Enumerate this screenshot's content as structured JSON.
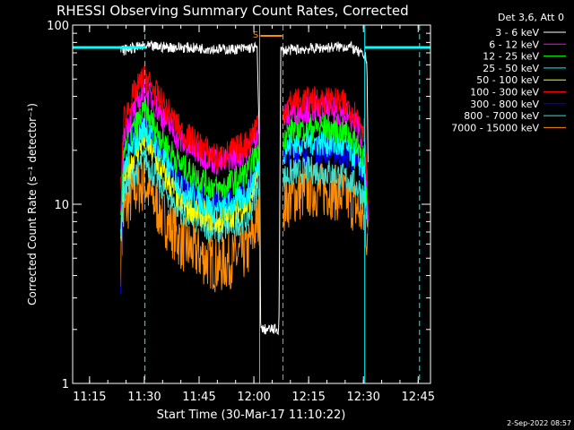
{
  "chart_data": {
    "type": "line",
    "title": "RHESSI Observing Summary Count Rates, Corrected",
    "xlabel": "Start Time (30-Mar-17 11:10:22)",
    "ylabel": "Corrected Count Rate (s⁻¹ detector⁻¹)",
    "yscale": "log",
    "ylim": [
      1,
      100
    ],
    "xlim_minutes": [
      0,
      98
    ],
    "x_ticks": [
      {
        "m": 4.63,
        "label": "11:15"
      },
      {
        "m": 19.63,
        "label": "11:30"
      },
      {
        "m": 34.63,
        "label": "11:45"
      },
      {
        "m": 49.63,
        "label": "12:00"
      },
      {
        "m": 64.63,
        "label": "12:15"
      },
      {
        "m": 79.63,
        "label": "12:30"
      },
      {
        "m": 94.63,
        "label": "12:45"
      }
    ],
    "y_ticks": [
      {
        "v": 1,
        "label": "1"
      },
      {
        "v": 10,
        "label": "10"
      },
      {
        "v": 100,
        "label": "100"
      }
    ],
    "legend_title": "Det 3,6, Att 0",
    "series": [
      {
        "name": "3 - 6 keV",
        "color": "#ffffff",
        "knots": [
          [
            13.2,
            72
          ],
          [
            16,
            74
          ],
          [
            19,
            76
          ],
          [
            30,
            75
          ],
          [
            43,
            73
          ],
          [
            50.5,
            75
          ],
          [
            51.2,
            20
          ],
          [
            51.5,
            2
          ],
          [
            56.5,
            2
          ],
          [
            57,
            72
          ],
          [
            70,
            75
          ],
          [
            76,
            76
          ],
          [
            80.6,
            65
          ],
          [
            81,
            10
          ]
        ]
      },
      {
        "name": "6 - 12 keV",
        "color": "#ff00ff",
        "knots": [
          [
            13.2,
            10
          ],
          [
            14,
            26
          ],
          [
            17,
            34
          ],
          [
            19.8,
            44
          ],
          [
            24,
            32
          ],
          [
            30,
            22
          ],
          [
            40,
            17
          ],
          [
            48,
            20
          ],
          [
            51,
            27
          ],
          [
            56.5,
            27
          ],
          [
            57.8,
            30
          ],
          [
            60,
            33
          ],
          [
            65,
            34
          ],
          [
            70,
            34
          ],
          [
            75,
            32
          ],
          [
            78,
            27
          ],
          [
            80,
            22
          ],
          [
            81,
            8
          ]
        ]
      },
      {
        "name": "12 - 25 keV",
        "color": "#00ff00",
        "knots": [
          [
            13.2,
            8
          ],
          [
            14,
            21
          ],
          [
            17,
            27
          ],
          [
            19.8,
            33
          ],
          [
            24,
            24
          ],
          [
            30,
            16
          ],
          [
            40,
            12
          ],
          [
            48,
            15
          ],
          [
            51,
            21
          ],
          [
            56.5,
            21
          ],
          [
            57.8,
            24
          ],
          [
            60,
            26
          ],
          [
            65,
            27
          ],
          [
            70,
            27
          ],
          [
            75,
            25
          ],
          [
            78,
            22
          ],
          [
            80,
            18
          ],
          [
            81,
            6.5
          ]
        ]
      },
      {
        "name": "25 - 50 keV",
        "color": "#00ffff",
        "knots": [
          [
            13.2,
            7
          ],
          [
            14,
            16
          ],
          [
            17,
            22
          ],
          [
            19.8,
            27
          ],
          [
            24,
            19
          ],
          [
            30,
            12
          ],
          [
            40,
            9
          ],
          [
            48,
            11.5
          ],
          [
            51,
            17
          ],
          [
            56.5,
            18
          ],
          [
            57.8,
            20
          ],
          [
            60,
            21.5
          ],
          [
            65,
            22.5
          ],
          [
            70,
            22
          ],
          [
            75,
            20.5
          ],
          [
            78,
            18
          ],
          [
            80,
            15
          ],
          [
            81,
            6
          ]
        ]
      },
      {
        "name": "50 - 100 keV",
        "color": "#ffff00",
        "knots": [
          [
            13.2,
            6.5
          ],
          [
            14,
            14
          ],
          [
            17,
            19
          ],
          [
            19.8,
            23
          ],
          [
            24,
            16
          ],
          [
            30,
            10
          ],
          [
            40,
            8
          ],
          [
            48,
            10
          ],
          [
            51,
            15
          ]
        ]
      },
      {
        "name": "100 - 300 keV",
        "color": "#ff0000",
        "knots": [
          [
            13.2,
            12
          ],
          [
            14,
            30
          ],
          [
            17,
            42
          ],
          [
            19.8,
            52
          ],
          [
            24,
            38
          ],
          [
            30,
            25
          ],
          [
            40,
            18
          ],
          [
            48,
            22
          ],
          [
            51,
            30
          ],
          [
            56.5,
            30
          ],
          [
            57.8,
            34
          ],
          [
            60,
            37
          ],
          [
            65,
            38
          ],
          [
            70,
            38
          ],
          [
            75,
            36
          ],
          [
            78,
            31
          ],
          [
            80,
            26
          ],
          [
            81,
            9
          ]
        ]
      },
      {
        "name": "300 - 800 keV",
        "color": "#0000ff",
        "knots": [
          [
            13.2,
            3
          ],
          [
            14,
            22
          ],
          [
            17,
            26
          ],
          [
            19.8,
            28
          ],
          [
            24,
            20
          ],
          [
            30,
            13
          ],
          [
            40,
            10
          ],
          [
            48,
            12.5
          ],
          [
            51,
            18
          ],
          [
            56.5,
            18
          ],
          [
            57.8,
            19
          ],
          [
            60,
            20
          ],
          [
            65,
            20
          ],
          [
            70,
            20
          ],
          [
            75,
            19
          ],
          [
            78,
            17
          ],
          [
            80,
            14
          ],
          [
            81,
            7
          ]
        ]
      },
      {
        "name": "800 - 7000 keV",
        "color": "#40e0d0",
        "knots": [
          [
            13.2,
            6.5
          ],
          [
            14,
            12
          ],
          [
            17,
            15
          ],
          [
            19.8,
            18
          ],
          [
            24,
            13
          ],
          [
            30,
            9
          ],
          [
            40,
            7
          ],
          [
            48,
            8.5
          ],
          [
            51,
            13
          ],
          [
            56.5,
            13
          ],
          [
            57.8,
            14
          ],
          [
            60,
            15
          ],
          [
            65,
            15.5
          ],
          [
            70,
            15
          ],
          [
            75,
            14
          ],
          [
            78,
            12.5
          ],
          [
            80,
            11
          ],
          [
            81,
            6.5
          ]
        ]
      },
      {
        "name": "7000 - 15000 keV",
        "color": "#ff8c00",
        "knots": [
          [
            13.2,
            5
          ],
          [
            14,
            9
          ],
          [
            17,
            12
          ],
          [
            19.8,
            13
          ],
          [
            24,
            9
          ],
          [
            30,
            6
          ],
          [
            40,
            4.5
          ],
          [
            48,
            5.5
          ],
          [
            51,
            8.5
          ],
          [
            56.5,
            9
          ],
          [
            57.8,
            10
          ],
          [
            60,
            11
          ],
          [
            65,
            12
          ],
          [
            70,
            12
          ],
          [
            75,
            11
          ],
          [
            78,
            9.5
          ],
          [
            80,
            8
          ],
          [
            81,
            6
          ]
        ]
      }
    ],
    "reference_lines": [
      {
        "kind": "hline",
        "value": 75,
        "x_from_m": 0,
        "x_to_m": 20,
        "color": "#00ffff"
      },
      {
        "kind": "hline",
        "value": 75,
        "x_from_m": 80,
        "x_to_m": 98,
        "color": "#00ffff"
      },
      {
        "kind": "vline",
        "m": 19.8,
        "color": "#00ffff",
        "dash": true
      },
      {
        "kind": "vline",
        "m": 80.0,
        "color": "#00ffff",
        "dash": false
      },
      {
        "kind": "vline",
        "m": 95.0,
        "color": "#00ffff",
        "dash": true
      },
      {
        "kind": "vline",
        "m": 51.2,
        "color": "#ff8c00",
        "dash": false
      },
      {
        "kind": "vline",
        "m": 57.6,
        "color": "#ff8c00",
        "dash": true
      }
    ],
    "annotation": {
      "label": "S",
      "m": 50.9,
      "bar_from_m": 51.4,
      "bar_to_m": 57.4,
      "color": "#ff8c00"
    },
    "legend_placement": "top-right",
    "grid": false
  },
  "timestamp": "2-Sep-2022 08:57"
}
